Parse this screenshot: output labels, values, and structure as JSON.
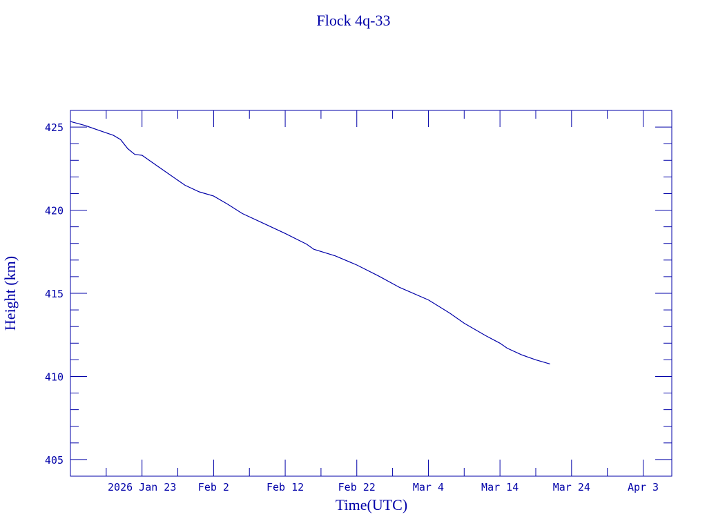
{
  "chart_data": {
    "type": "line",
    "title": "Flock 4q-33",
    "xlabel": "Time(UTC)",
    "ylabel": "Height (km)",
    "color": "#0000a8",
    "grid": false,
    "xlim": [
      "2026-01-13",
      "2026-04-07"
    ],
    "ylim": [
      404,
      426
    ],
    "x_major_ticks": [
      {
        "date": "2026-01-23",
        "label": "2026 Jan 23"
      },
      {
        "date": "2026-02-02",
        "label": "Feb  2"
      },
      {
        "date": "2026-02-12",
        "label": "Feb 12"
      },
      {
        "date": "2026-02-22",
        "label": "Feb 22"
      },
      {
        "date": "2026-03-04",
        "label": "Mar  4"
      },
      {
        "date": "2026-03-14",
        "label": "Mar 14"
      },
      {
        "date": "2026-03-24",
        "label": "Mar 24"
      },
      {
        "date": "2026-04-03",
        "label": "Apr  3"
      }
    ],
    "x_minor_tick_days": 5,
    "y_major_ticks": [
      405,
      410,
      415,
      420,
      425
    ],
    "y_tick_labels": [
      "405",
      "410",
      "415",
      "420",
      "425"
    ],
    "y_minor_tick_step": 1,
    "series": [
      {
        "name": "Height",
        "points": [
          [
            "2026-01-13",
            425.33
          ],
          [
            "2026-01-15",
            425.1
          ],
          [
            "2026-01-17",
            424.8
          ],
          [
            "2026-01-19",
            424.5
          ],
          [
            "2026-01-20",
            424.25
          ],
          [
            "2026-01-21",
            423.7
          ],
          [
            "2026-01-22",
            423.35
          ],
          [
            "2026-01-23",
            423.3
          ],
          [
            "2026-01-25",
            422.7
          ],
          [
            "2026-01-27",
            422.1
          ],
          [
            "2026-01-29",
            421.5
          ],
          [
            "2026-01-31",
            421.1
          ],
          [
            "2026-02-02",
            420.85
          ],
          [
            "2026-02-04",
            420.35
          ],
          [
            "2026-02-06",
            419.8
          ],
          [
            "2026-02-09",
            419.2
          ],
          [
            "2026-02-12",
            418.6
          ],
          [
            "2026-02-15",
            417.95
          ],
          [
            "2026-02-16",
            417.65
          ],
          [
            "2026-02-19",
            417.25
          ],
          [
            "2026-02-22",
            416.7
          ],
          [
            "2026-02-25",
            416.05
          ],
          [
            "2026-02-28",
            415.35
          ],
          [
            "2026-03-04",
            414.6
          ],
          [
            "2026-03-07",
            413.8
          ],
          [
            "2026-03-09",
            413.2
          ],
          [
            "2026-03-12",
            412.45
          ],
          [
            "2026-03-14",
            412.0
          ],
          [
            "2026-03-15",
            411.7
          ],
          [
            "2026-03-17",
            411.3
          ],
          [
            "2026-03-19",
            411.0
          ],
          [
            "2026-03-21",
            410.75
          ]
        ]
      }
    ]
  }
}
